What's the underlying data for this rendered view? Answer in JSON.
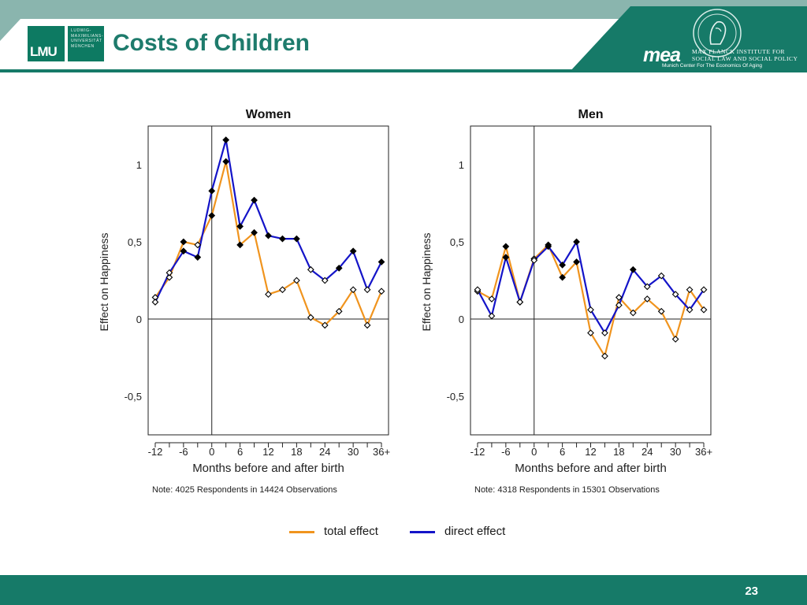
{
  "slide": {
    "title": "Costs of Children",
    "page_number": "23"
  },
  "branding": {
    "lmu_logo_text": "LMU",
    "lmu_sub_lines": [
      "LUDWIG-",
      "MAXIMILIANS-",
      "UNIVERSITÄT",
      "MÜNCHEN"
    ],
    "mea_word": "mea",
    "mea_line1": "MAX PLANCK INSTITUTE FOR",
    "mea_line2": "SOCIAL LAW AND SOCIAL POLICY",
    "mea_line3": "Munich Center For The Economics Of Aging"
  },
  "colors": {
    "header_band": "#8ab5ae",
    "header_accent": "#167a68",
    "title_green": "#1e7b6c",
    "total_effect": "#f0941e",
    "direct_effect": "#1414c8",
    "marker": "#000000"
  },
  "legend": {
    "total_label": "total effect",
    "direct_label": "direct effect"
  },
  "chart_data": [
    {
      "type": "line",
      "title": "Women",
      "xlabel": "Months before and after birth",
      "ylabel": "Effect on Happiness",
      "note": "Note: 4025 Respondents in 14424 Observations",
      "x": [
        -12,
        -9,
        -6,
        -3,
        0,
        3,
        6,
        9,
        12,
        15,
        18,
        21,
        24,
        27,
        30,
        33,
        36
      ],
      "x_tick_values": [
        -12,
        -6,
        0,
        6,
        12,
        18,
        24,
        30,
        36
      ],
      "x_tick_labels": [
        "-12",
        "-6",
        "0",
        "6",
        "12",
        "18",
        "24",
        "30",
        "36+"
      ],
      "xlim": [
        -13.5,
        37.5
      ],
      "y_tick_values": [
        -0.5,
        0,
        0.5,
        1
      ],
      "y_tick_labels": [
        "-0,5",
        "0",
        "0,5",
        "1"
      ],
      "ylim": [
        -0.75,
        1.25
      ],
      "series": [
        {
          "name": "total effect",
          "values": [
            0.14,
            0.27,
            0.5,
            0.48,
            0.67,
            1.02,
            0.48,
            0.56,
            0.16,
            0.19,
            0.25,
            0.01,
            -0.04,
            0.05,
            0.19,
            -0.04,
            0.18
          ],
          "filled": [
            false,
            false,
            true,
            false,
            true,
            true,
            true,
            true,
            false,
            false,
            false,
            false,
            false,
            false,
            false,
            false,
            false
          ]
        },
        {
          "name": "direct effect",
          "values": [
            0.11,
            0.3,
            0.44,
            0.4,
            0.83,
            1.16,
            0.6,
            0.77,
            0.54,
            0.52,
            0.52,
            0.32,
            0.25,
            0.33,
            0.44,
            0.19,
            0.37
          ],
          "filled": [
            false,
            false,
            true,
            true,
            true,
            true,
            true,
            true,
            true,
            true,
            true,
            false,
            false,
            true,
            true,
            false,
            true
          ]
        }
      ]
    },
    {
      "type": "line",
      "title": "Men",
      "xlabel": "Months before and after birth",
      "ylabel": "Effect on Happiness",
      "note": "Note: 4318 Respondents in 15301 Observations",
      "x": [
        -12,
        -9,
        -6,
        -3,
        0,
        3,
        6,
        9,
        12,
        15,
        18,
        21,
        24,
        27,
        30,
        33,
        36
      ],
      "x_tick_values": [
        -12,
        -6,
        0,
        6,
        12,
        18,
        24,
        30,
        36
      ],
      "x_tick_labels": [
        "-12",
        "-6",
        "0",
        "6",
        "12",
        "18",
        "24",
        "30",
        "36+"
      ],
      "xlim": [
        -13.5,
        37.5
      ],
      "y_tick_values": [
        -0.5,
        0,
        0.5,
        1
      ],
      "y_tick_labels": [
        "-0,5",
        "0",
        "0,5",
        "1"
      ],
      "ylim": [
        -0.75,
        1.25
      ],
      "series": [
        {
          "name": "total effect",
          "values": [
            0.18,
            0.13,
            0.47,
            0.11,
            0.39,
            0.48,
            0.27,
            0.37,
            -0.09,
            -0.24,
            0.14,
            0.04,
            0.13,
            0.05,
            -0.13,
            0.19,
            0.06
          ],
          "filled": [
            false,
            false,
            true,
            false,
            false,
            true,
            true,
            true,
            false,
            false,
            false,
            false,
            false,
            false,
            false,
            false,
            false
          ]
        },
        {
          "name": "direct effect",
          "values": [
            0.19,
            0.02,
            0.4,
            0.11,
            0.38,
            0.47,
            0.35,
            0.5,
            0.06,
            -0.09,
            0.09,
            0.32,
            0.21,
            0.28,
            0.16,
            0.06,
            0.19
          ],
          "filled": [
            false,
            false,
            true,
            false,
            false,
            true,
            true,
            true,
            false,
            false,
            false,
            true,
            false,
            false,
            false,
            false,
            false
          ]
        }
      ]
    }
  ]
}
